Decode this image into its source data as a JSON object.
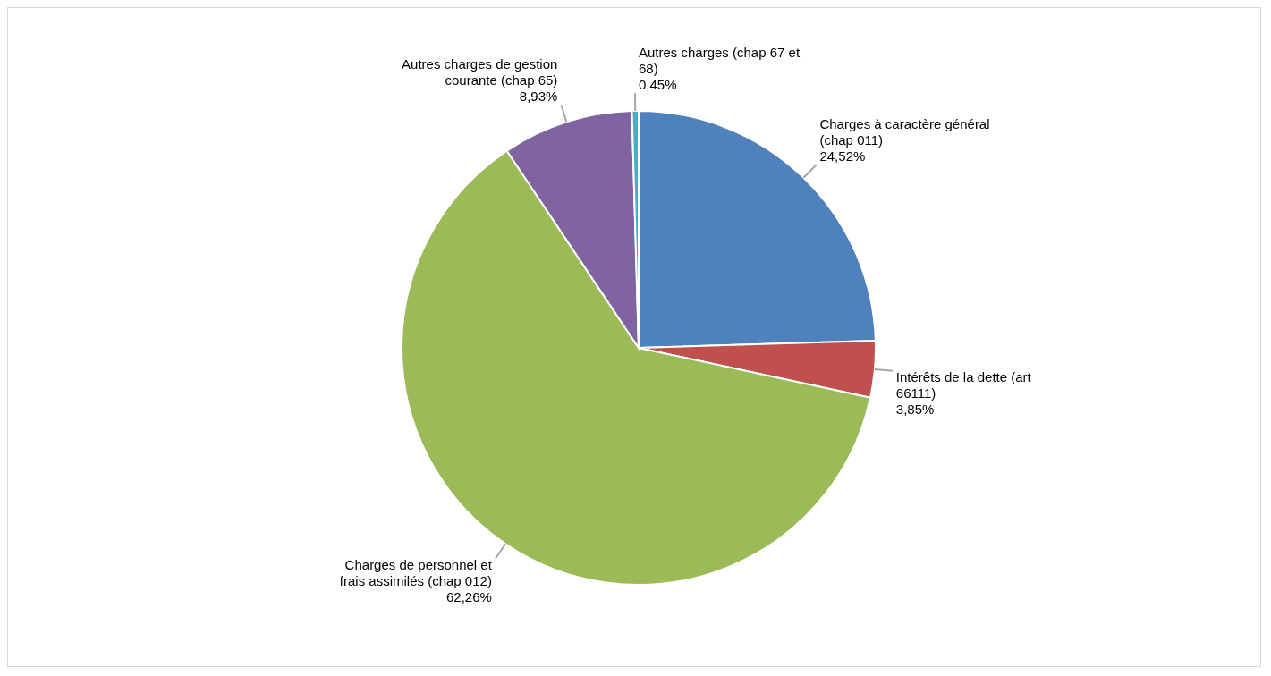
{
  "chart_data": {
    "type": "pie",
    "categories": [
      "Charges à caractère général (chap 011)",
      "Intérêts de la dette (art 66111)",
      "Charges de personnel et frais assimilés (chap 012)",
      "Autres charges de gestion courante (chap 65)",
      "Autres charges (chap 67 et 68)"
    ],
    "values": [
      24.52,
      3.85,
      62.26,
      8.93,
      0.45
    ],
    "value_labels": [
      "24,52%",
      "3,85%",
      "62,26%",
      "8,93%",
      "0,45%"
    ],
    "colors": [
      "#4f81bd",
      "#c0504d",
      "#9bbb59",
      "#8064a2",
      "#4bacc6"
    ]
  }
}
